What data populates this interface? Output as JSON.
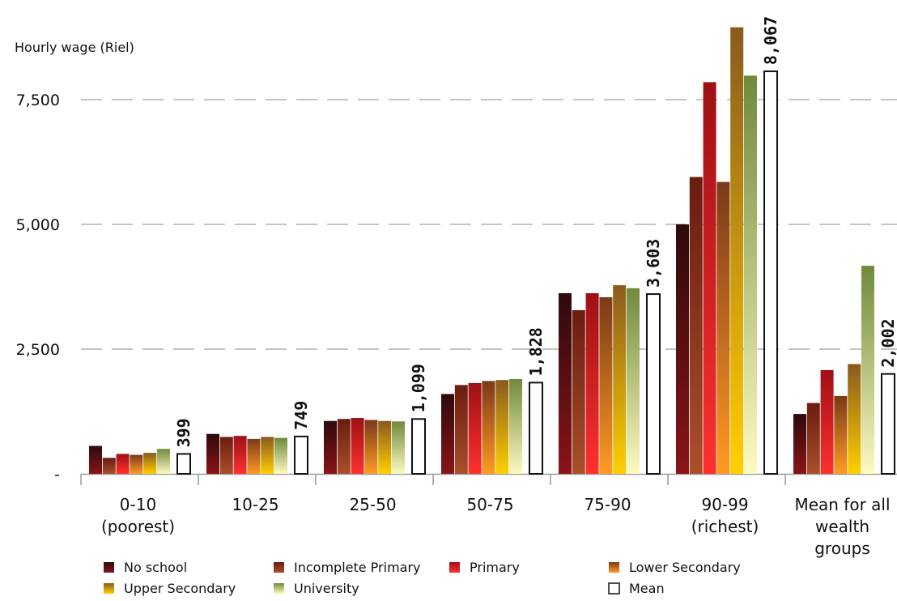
{
  "chart_data": {
    "type": "bar",
    "ylabel": "Hourly wage (Riel)",
    "ylim": [
      0,
      9000
    ],
    "yticks": [
      {
        "value": 0,
        "label": "-"
      },
      {
        "value": 2500,
        "label": "2,500"
      },
      {
        "value": 5000,
        "label": "5,000"
      },
      {
        "value": 7500,
        "label": "7,500"
      }
    ],
    "grid": "horizontal-dashed",
    "legend_position": "bottom",
    "categories": [
      [
        "0-10",
        "(poorest)"
      ],
      [
        "10-25"
      ],
      [
        "25-50"
      ],
      [
        "50-75"
      ],
      [
        "75-90"
      ],
      [
        "90-99",
        "(richest)"
      ],
      [
        "Mean for all",
        "wealth",
        "groups"
      ]
    ],
    "series": [
      {
        "name": "No school",
        "values": [
          560,
          800,
          1060,
          1600,
          3620,
          5000,
          1200
        ],
        "colors": [
          "#2e0a0c",
          "#8a1418"
        ]
      },
      {
        "name": "Incomplete Primary",
        "values": [
          320,
          740,
          1100,
          1780,
          3280,
          5950,
          1420
        ],
        "colors": [
          "#6b1c10",
          "#a9502a"
        ]
      },
      {
        "name": "Primary",
        "values": [
          400,
          760,
          1120,
          1820,
          3620,
          7850,
          2080
        ],
        "colors": [
          "#9e1014",
          "#ff3030"
        ]
      },
      {
        "name": "Lower Secondary",
        "values": [
          380,
          700,
          1080,
          1860,
          3540,
          5850,
          1560
        ],
        "colors": [
          "#7a3a18",
          "#ff9a24"
        ]
      },
      {
        "name": "Upper Secondary",
        "values": [
          420,
          740,
          1060,
          1880,
          3780,
          8950,
          2200
        ],
        "colors": [
          "#8a5a1e",
          "#ffd000"
        ]
      },
      {
        "name": "University",
        "values": [
          500,
          720,
          1050,
          1900,
          3720,
          7980,
          4170
        ],
        "colors": [
          "#708a3c",
          "#fffac0"
        ]
      },
      {
        "name": "Mean",
        "values": [
          399,
          749,
          1099,
          1828,
          3603,
          8067,
          2002
        ],
        "colors": [
          "#ffffff",
          "#ffffff"
        ],
        "labels": [
          "399",
          "749",
          "1,099",
          "1,828",
          "3,603",
          "8,067",
          "2,002"
        ]
      }
    ]
  }
}
